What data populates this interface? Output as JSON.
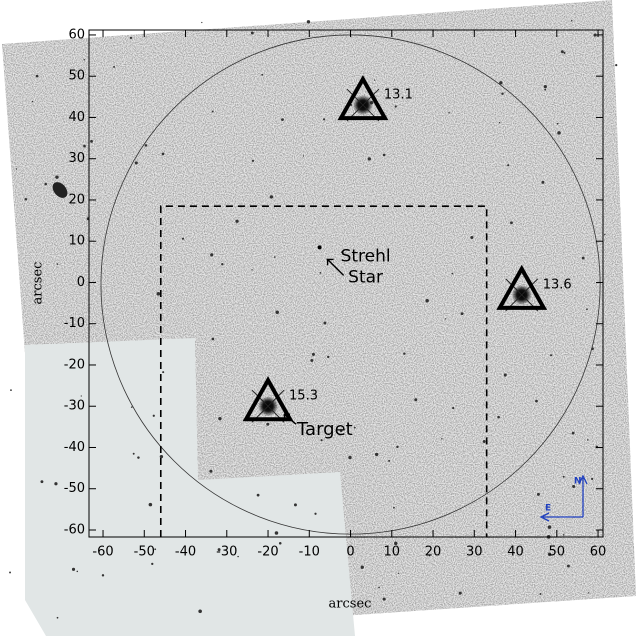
{
  "chart_data": {
    "type": "finder",
    "xlabel": "arcsec",
    "ylabel": "arcsec",
    "xlim": [
      -63.4,
      61.2
    ],
    "ylim": [
      -61.7,
      61.2
    ],
    "xticks": [
      -60,
      -50,
      -40,
      -30,
      -20,
      -10,
      0,
      10,
      20,
      30,
      40,
      50,
      60
    ],
    "yticks": [
      -60,
      -50,
      -40,
      -30,
      -20,
      -10,
      0,
      10,
      20,
      30,
      40,
      50,
      60
    ],
    "markers": [
      {
        "x": 3,
        "y": 43,
        "label": "13.1"
      },
      {
        "x": 41.5,
        "y": -3,
        "label": "13.6"
      },
      {
        "x": -20,
        "y": -30,
        "label": "15.3"
      }
    ],
    "target_label": "Target",
    "strehl_star": {
      "x": -7.5,
      "y": 8.5,
      "label": [
        "Strehl",
        "Star"
      ]
    },
    "circle": {
      "x": 0,
      "y": -0.5,
      "r": 60.5
    },
    "box": {
      "x": [
        -46,
        33
      ],
      "y": [
        -61.7,
        18.5
      ]
    },
    "compass": {
      "north": "N",
      "east": "E"
    }
  }
}
